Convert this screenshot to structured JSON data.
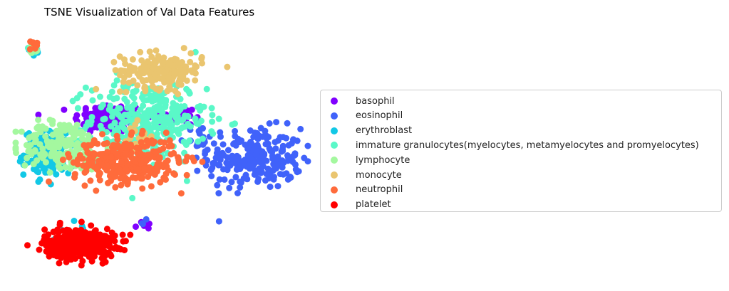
{
  "chart_data": {
    "type": "scatter",
    "title": "TSNE Visualization of Val Data Features",
    "xlabel": "",
    "ylabel": "",
    "axes_visible": false,
    "grid": false,
    "legend_placement": "center-right outside plot",
    "series": [
      {
        "name": "basophil",
        "color": "#8000ff",
        "clusters": [
          {
            "cx": 0.32,
            "cy": 0.63,
            "sx": 0.06,
            "sy": 0.03,
            "n": 120
          },
          {
            "cx": 0.44,
            "cy": 0.2,
            "sx": 0.02,
            "sy": 0.02,
            "n": 6
          },
          {
            "cx": 0.56,
            "cy": 0.64,
            "sx": 0.05,
            "sy": 0.02,
            "n": 20
          }
        ]
      },
      {
        "name": "eosinophil",
        "color": "#4062fa",
        "clusters": [
          {
            "cx": 0.82,
            "cy": 0.47,
            "sx": 0.08,
            "sy": 0.06,
            "n": 230
          },
          {
            "cx": 0.44,
            "cy": 0.21,
            "sx": 0.01,
            "sy": 0.01,
            "n": 4
          },
          {
            "cx": 0.62,
            "cy": 0.55,
            "sx": 0.03,
            "sy": 0.03,
            "n": 20
          }
        ]
      },
      {
        "name": "erythroblast",
        "color": "#12c8e6",
        "clusters": [
          {
            "cx": 0.12,
            "cy": 0.49,
            "sx": 0.045,
            "sy": 0.045,
            "n": 170
          },
          {
            "cx": 0.19,
            "cy": 0.14,
            "sx": 0.05,
            "sy": 0.04,
            "n": 18
          },
          {
            "cx": 0.06,
            "cy": 0.9,
            "sx": 0.01,
            "sy": 0.01,
            "n": 6
          }
        ]
      },
      {
        "name": "immature granulocytes(myelocytes, metamyelocytes and promyelocytes)",
        "color": "#5af8c8",
        "clusters": [
          {
            "cx": 0.45,
            "cy": 0.62,
            "sx": 0.1,
            "sy": 0.08,
            "n": 330
          },
          {
            "cx": 0.06,
            "cy": 0.91,
            "sx": 0.01,
            "sy": 0.01,
            "n": 10
          }
        ]
      },
      {
        "name": "lymphocyte",
        "color": "#a4f89f",
        "clusters": [
          {
            "cx": 0.16,
            "cy": 0.52,
            "sx": 0.07,
            "sy": 0.05,
            "n": 190
          },
          {
            "cx": 0.06,
            "cy": 0.91,
            "sx": 0.01,
            "sy": 0.01,
            "n": 8
          }
        ]
      },
      {
        "name": "monocyte",
        "color": "#eac56f",
        "clusters": [
          {
            "cx": 0.5,
            "cy": 0.82,
            "sx": 0.07,
            "sy": 0.035,
            "n": 190
          },
          {
            "cx": 0.41,
            "cy": 0.55,
            "sx": 0.03,
            "sy": 0.03,
            "n": 15
          }
        ]
      },
      {
        "name": "neutrophil",
        "color": "#ff6b3b",
        "clusters": [
          {
            "cx": 0.38,
            "cy": 0.46,
            "sx": 0.09,
            "sy": 0.045,
            "n": 330
          },
          {
            "cx": 0.06,
            "cy": 0.92,
            "sx": 0.01,
            "sy": 0.01,
            "n": 8
          }
        ]
      },
      {
        "name": "platelet",
        "color": "#ff0000",
        "clusters": [
          {
            "cx": 0.22,
            "cy": 0.13,
            "sx": 0.06,
            "sy": 0.03,
            "n": 400
          }
        ]
      }
    ]
  }
}
